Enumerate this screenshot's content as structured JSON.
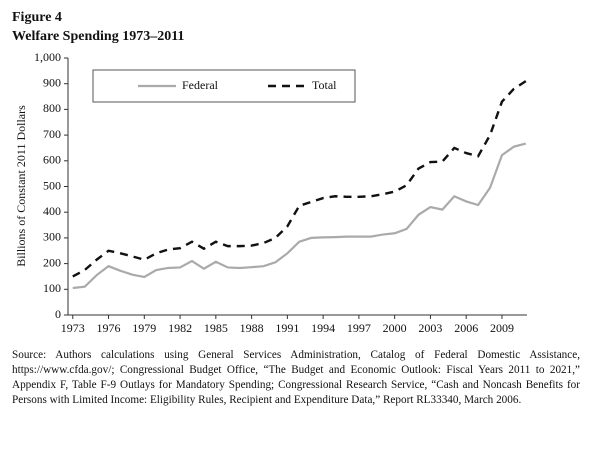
{
  "chart_data": {
    "type": "line",
    "title": "Figure 4",
    "subtitle": "Welfare Spending 1973–2011",
    "y_label": "Billions of Constant 2011 Dollars",
    "x": [
      1973,
      1974,
      1975,
      1976,
      1977,
      1978,
      1979,
      1980,
      1981,
      1982,
      1983,
      1984,
      1985,
      1986,
      1987,
      1988,
      1989,
      1990,
      1991,
      1992,
      1993,
      1994,
      1995,
      1996,
      1997,
      1998,
      1999,
      2000,
      2001,
      2002,
      2003,
      2004,
      2005,
      2006,
      2007,
      2008,
      2009,
      2010,
      2011
    ],
    "series": [
      {
        "name": "Federal",
        "color": "#aaaaaa",
        "dash": false,
        "values": [
          105,
          110,
          155,
          190,
          172,
          157,
          148,
          175,
          183,
          185,
          210,
          180,
          207,
          185,
          183,
          186,
          190,
          205,
          240,
          285,
          300,
          302,
          303,
          305,
          305,
          305,
          313,
          318,
          335,
          390,
          420,
          410,
          462,
          442,
          428,
          495,
          622,
          655,
          667
        ]
      },
      {
        "name": "Total",
        "color": "#111111",
        "dash": true,
        "values": [
          150,
          175,
          215,
          250,
          240,
          228,
          215,
          240,
          255,
          260,
          285,
          258,
          285,
          268,
          268,
          270,
          280,
          300,
          345,
          425,
          440,
          455,
          462,
          460,
          460,
          462,
          470,
          480,
          505,
          570,
          595,
          597,
          650,
          630,
          618,
          700,
          830,
          880,
          910
        ]
      }
    ],
    "xlim": [
      1972.6,
      2011.1
    ],
    "xticks": [
      1973,
      1976,
      1979,
      1982,
      1985,
      1988,
      1991,
      1994,
      1997,
      2000,
      2003,
      2006,
      2009
    ],
    "ylim": [
      0,
      1000
    ],
    "yticks": [
      0,
      100,
      200,
      300,
      400,
      500,
      600,
      700,
      800,
      900,
      {
        "value": 1000,
        "label": "1,000"
      }
    ],
    "note": "Source: Authors calculations using General Services Administration, Catalog of Federal Domestic Assistance, https://www.cfda.gov/; Congressional Budget Office, “The Budget and Economic Outlook: Fiscal Years 2011 to 2021,” Appendix F, Table F-9 Outlays for Mandatory Spending; Congressional Research Service, “Cash and Noncash Benefits for Persons with Limited Income: Eligibility Rules, Recipient and Expenditure Data,” Report RL33340, March 2006."
  }
}
